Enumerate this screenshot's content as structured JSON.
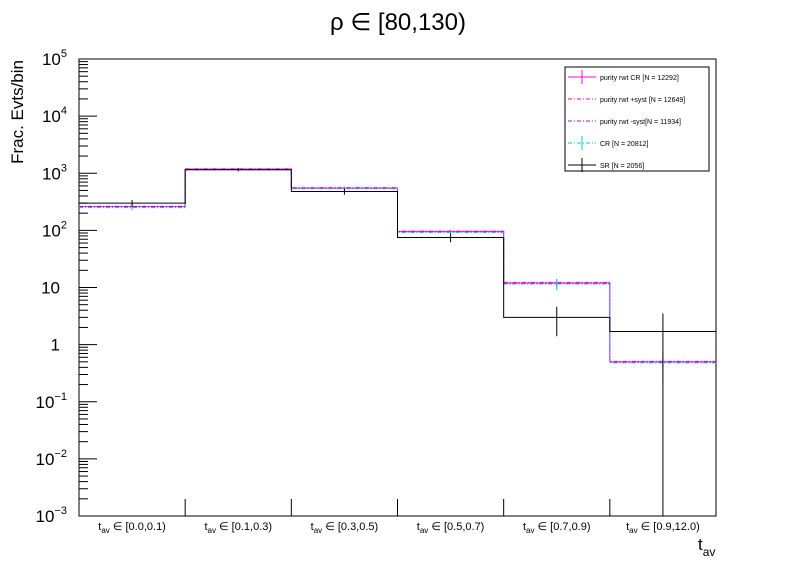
{
  "chart_data": {
    "type": "step-histogram",
    "title": "ρ ∈ [80,130)",
    "ylabel": "Frac. Evts/bin",
    "xlabel": {
      "base": "t",
      "sub": "av"
    },
    "yscale": "log",
    "ylim": [
      0.001,
      100000
    ],
    "y_tick_labels": [
      {
        "value": 0.001,
        "base": "10",
        "exp": "−3"
      },
      {
        "value": 0.01,
        "base": "10",
        "exp": "−2"
      },
      {
        "value": 0.1,
        "base": "10",
        "exp": "−1"
      },
      {
        "value": 1,
        "base": "1",
        "exp": ""
      },
      {
        "value": 10,
        "base": "10",
        "exp": ""
      },
      {
        "value": 100,
        "base": "10",
        "exp": "2"
      },
      {
        "value": 1000,
        "base": "10",
        "exp": "3"
      },
      {
        "value": 10000,
        "base": "10",
        "exp": "4"
      },
      {
        "value": 100000,
        "base": "10",
        "exp": "5"
      }
    ],
    "categories": [
      {
        "base": "t",
        "sub": "av",
        "range": " ∈ [0.0,0.1)"
      },
      {
        "base": "t",
        "sub": "av",
        "range": " ∈ [0.1,0.3)"
      },
      {
        "base": "t",
        "sub": "av",
        "range": " ∈ [0.3,0.5)"
      },
      {
        "base": "t",
        "sub": "av",
        "range": " ∈ [0.5,0.7)"
      },
      {
        "base": "t",
        "sub": "av",
        "range": " ∈ [0.7,0.9)"
      },
      {
        "base": "t",
        "sub": "av",
        "range": " ∈ [0.9,12.0)"
      }
    ],
    "legend_position": "top-right",
    "series": [
      {
        "name": "purity rwt CR [N = 12292]",
        "color": "#ff00ff",
        "style": "solid",
        "values": [
          260,
          1180,
          550,
          95,
          12,
          0.5
        ],
        "errors": [
          [
            230,
            290
          ],
          [
            1120,
            1240
          ],
          [
            520,
            580
          ],
          [
            88,
            102
          ],
          [
            10,
            14
          ],
          [
            0.4,
            0.6
          ]
        ]
      },
      {
        "name": "purity rwt +syst [N = 12649]",
        "color": "#ff00cc",
        "style": "dashdot",
        "values": [
          265,
          1200,
          560,
          97,
          12.3,
          0.51
        ],
        "errors": null
      },
      {
        "name": "purity rwt -syst[N = 11934]",
        "color": "#cc00cc",
        "style": "dashdot",
        "values": [
          255,
          1160,
          540,
          93,
          11.7,
          0.49
        ],
        "errors": null
      },
      {
        "name": "CR [N = 20812]",
        "color": "#00cccc",
        "style": "dashdot",
        "values": [
          250,
          1150,
          535,
          92,
          11.5,
          0.48
        ],
        "errors": [
          [
            225,
            275
          ],
          [
            1100,
            1200
          ],
          [
            510,
            560
          ],
          [
            86,
            98
          ],
          [
            9,
            14
          ],
          [
            0.2,
            0.75
          ]
        ]
      },
      {
        "name": "SR [N = 2056]",
        "color": "#000000",
        "style": "solid",
        "values": [
          300,
          1150,
          480,
          75,
          3,
          1.7
        ],
        "errors": [
          [
            260,
            340
          ],
          [
            1080,
            1220
          ],
          [
            420,
            540
          ],
          [
            62,
            88
          ],
          [
            1.4,
            4.6
          ],
          [
            0.001,
            3.5
          ]
        ]
      }
    ]
  }
}
